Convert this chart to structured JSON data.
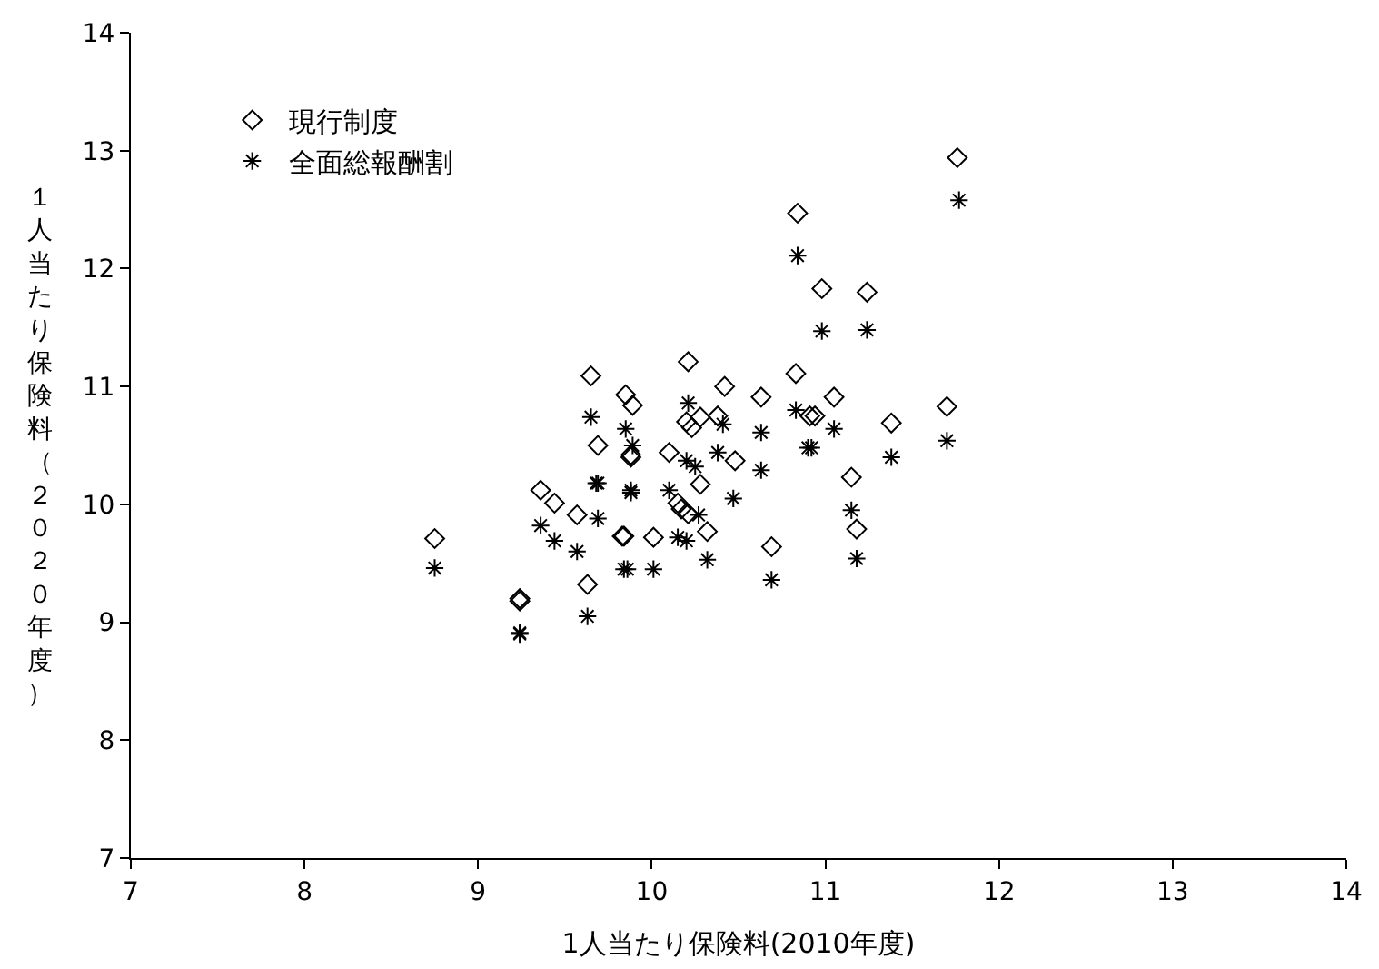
{
  "chart_data": {
    "type": "scatter",
    "xlabel": "1人当たり保険料(2010年度)",
    "ylabel": "１人当たり保険料（２０２０年度）",
    "xlim": [
      7,
      14
    ],
    "ylim": [
      7,
      14
    ],
    "xticks": [
      7,
      8,
      9,
      10,
      11,
      12,
      13,
      14
    ],
    "yticks": [
      7,
      8,
      9,
      10,
      11,
      12,
      13,
      14
    ],
    "legend": "top left",
    "series": [
      {
        "name": "現行制度",
        "color": "#000000",
        "marker": "diamond",
        "x": [
          8.75,
          9.24,
          9.24,
          9.36,
          9.44,
          9.57,
          9.63,
          9.65,
          9.69,
          9.83,
          9.84,
          9.85,
          9.89,
          9.88,
          9.88,
          10.01,
          10.1,
          10.21,
          10.28,
          10.2,
          10.23,
          10.28,
          10.15,
          10.17,
          10.21,
          10.32,
          10.84,
          10.98,
          11.24,
          10.42,
          10.83,
          10.63,
          11.05,
          10.91,
          10.94,
          10.38,
          11.38,
          11.7,
          10.48,
          11.15,
          11.18,
          10.69,
          11.76
        ],
        "values": [
          9.71,
          9.2,
          9.18,
          10.12,
          10.01,
          9.91,
          9.32,
          11.09,
          10.5,
          9.73,
          9.73,
          10.93,
          10.84,
          10.42,
          10.4,
          9.72,
          10.44,
          11.21,
          10.17,
          10.7,
          10.65,
          10.74,
          10.01,
          9.96,
          9.92,
          9.77,
          12.47,
          11.83,
          11.8,
          11.0,
          11.11,
          10.91,
          10.91,
          10.75,
          10.75,
          10.75,
          10.69,
          10.83,
          10.37,
          10.23,
          9.79,
          9.64,
          12.94
        ]
      },
      {
        "name": "全面総報酬割",
        "color": "#000000",
        "marker": "cross",
        "x": [
          8.75,
          9.24,
          9.24,
          9.36,
          9.44,
          9.57,
          9.63,
          9.65,
          9.69,
          9.68,
          9.69,
          9.84,
          9.86,
          9.85,
          9.88,
          9.88,
          9.89,
          10.01,
          10.1,
          10.21,
          10.15,
          10.2,
          10.2,
          10.25,
          10.27,
          10.32,
          11.77,
          10.84,
          10.98,
          11.24,
          10.83,
          10.63,
          11.05,
          10.92,
          10.9,
          10.41,
          10.38,
          11.38,
          11.7,
          10.63,
          10.47,
          11.15,
          11.18,
          10.69
        ],
        "values": [
          9.46,
          8.91,
          8.9,
          9.82,
          9.69,
          9.6,
          9.05,
          10.74,
          10.18,
          10.18,
          9.88,
          9.45,
          9.45,
          10.64,
          10.12,
          10.1,
          10.5,
          9.45,
          10.12,
          10.86,
          9.72,
          9.69,
          10.37,
          10.32,
          9.91,
          9.53,
          12.58,
          12.11,
          11.47,
          11.48,
          10.8,
          10.61,
          10.64,
          10.48,
          10.48,
          10.68,
          10.44,
          10.4,
          10.54,
          10.29,
          10.05,
          9.95,
          9.54,
          9.36
        ]
      }
    ]
  }
}
